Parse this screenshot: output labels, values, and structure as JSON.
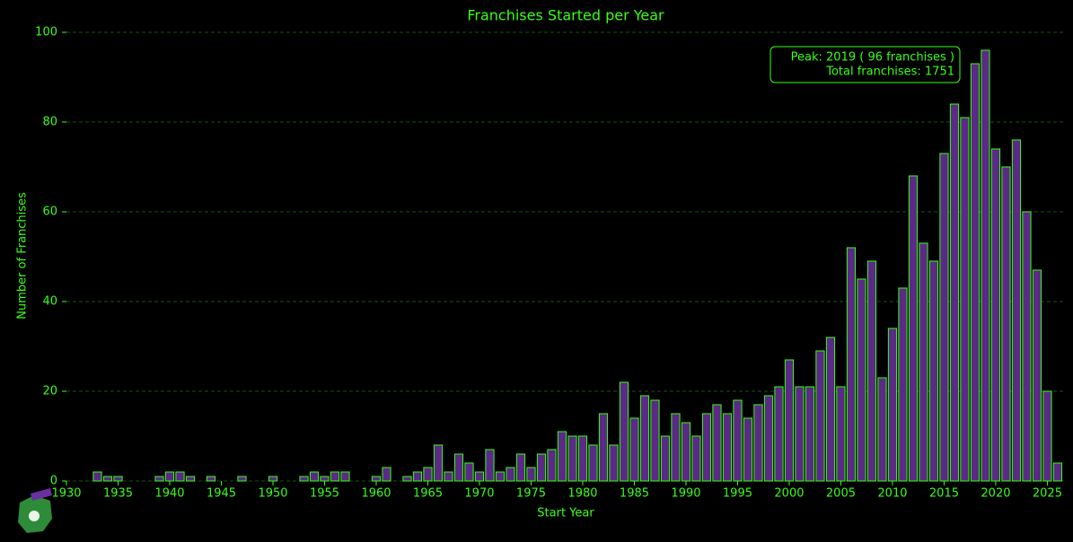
{
  "chart_data": {
    "type": "bar",
    "title": "Franchises Started per Year",
    "x_label": "Start Year",
    "y_label": "Number of Franchises",
    "annotations": [
      "Peak: 2019  ( 96 franchises )",
      "Total franchises: 1751"
    ],
    "x": [
      1933,
      1934,
      1935,
      1939,
      1940,
      1941,
      1942,
      1944,
      1947,
      1950,
      1953,
      1954,
      1955,
      1956,
      1957,
      1960,
      1961,
      1963,
      1964,
      1965,
      1966,
      1967,
      1968,
      1969,
      1970,
      1971,
      1972,
      1973,
      1974,
      1975,
      1976,
      1977,
      1978,
      1979,
      1980,
      1981,
      1982,
      1983,
      1984,
      1985,
      1986,
      1987,
      1988,
      1989,
      1990,
      1991,
      1992,
      1993,
      1994,
      1995,
      1996,
      1997,
      1998,
      1999,
      2000,
      2001,
      2002,
      2003,
      2004,
      2005,
      2006,
      2007,
      2008,
      2009,
      2010,
      2011,
      2012,
      2013,
      2014,
      2015,
      2016,
      2017,
      2018,
      2019,
      2020,
      2021,
      2022,
      2023,
      2024,
      2025,
      2026
    ],
    "values": [
      2,
      1,
      1,
      1,
      2,
      2,
      1,
      1,
      1,
      1,
      1,
      2,
      1,
      2,
      2,
      1,
      3,
      1,
      2,
      3,
      8,
      2,
      6,
      4,
      2,
      7,
      2,
      3,
      6,
      3,
      6,
      7,
      11,
      10,
      10,
      8,
      15,
      8,
      22,
      14,
      19,
      18,
      10,
      15,
      13,
      10,
      15,
      17,
      15,
      18,
      14,
      17,
      19,
      21,
      27,
      21,
      21,
      29,
      32,
      21,
      52,
      45,
      49,
      23,
      34,
      43,
      68,
      53,
      49,
      73,
      84,
      81,
      93,
      96,
      74,
      70,
      76,
      60,
      47,
      20,
      4
    ],
    "color": "#5b2a86",
    "edge_color": "#39ff14",
    "xlim": [
      1930,
      2026.7
    ],
    "ylim": [
      0,
      100
    ],
    "xticks": [
      1930,
      1935,
      1940,
      1945,
      1950,
      1955,
      1960,
      1965,
      1970,
      1975,
      1980,
      1985,
      1990,
      1995,
      2000,
      2005,
      2010,
      2015,
      2020,
      2025
    ],
    "yticks": [
      0,
      20,
      40,
      60,
      80,
      100
    ],
    "grid": true
  }
}
